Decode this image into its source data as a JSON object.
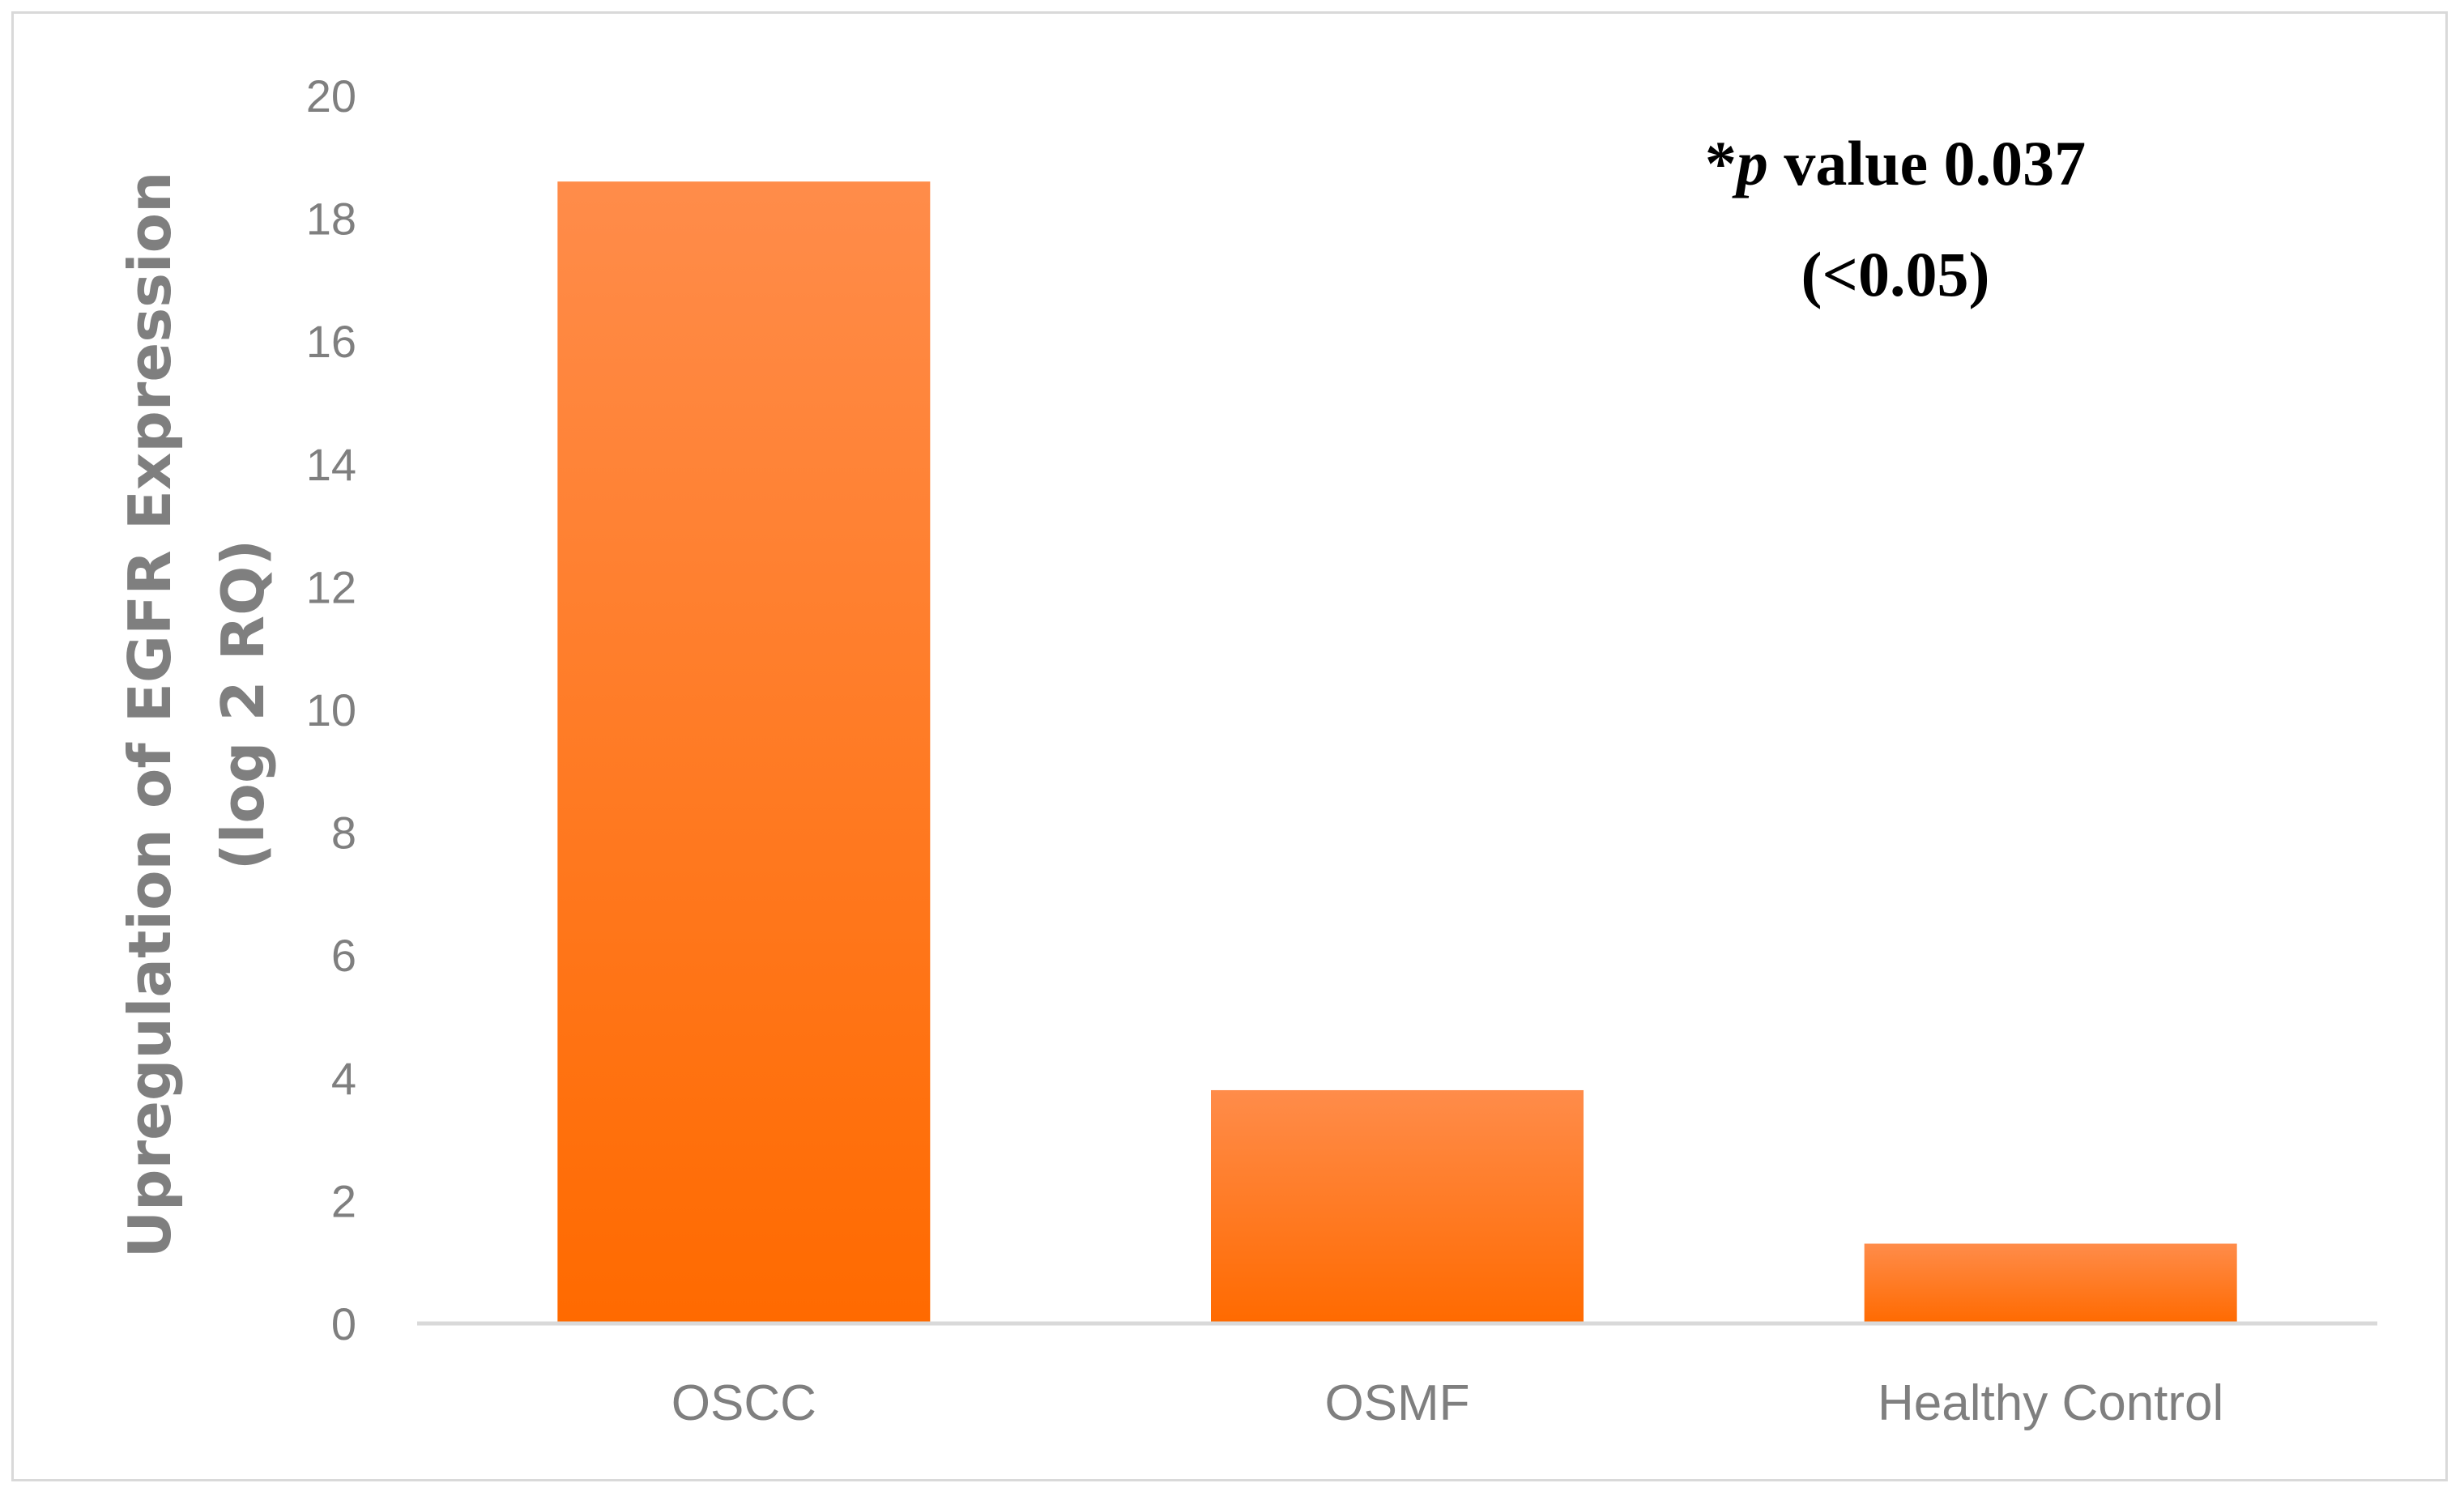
{
  "chart_data": {
    "type": "bar",
    "categories": [
      "OSCC",
      "OSMF",
      "Healthy Control"
    ],
    "values": [
      18.6,
      3.8,
      1.3
    ],
    "ylabel_line1": "Upregulation of EGFR Expression",
    "ylabel_line2": "(log 2 RQ)",
    "ylim": [
      0,
      20
    ],
    "yticks": [
      0,
      2,
      4,
      6,
      8,
      10,
      12,
      14,
      16,
      18,
      20
    ],
    "grid": false,
    "bar_color_top": "#ff8c4a",
    "bar_color_bottom": "#ff6a00",
    "annotation": {
      "star": "*",
      "p": "p",
      "rest": " value 0.037",
      "line2": "(<0.05)"
    }
  }
}
